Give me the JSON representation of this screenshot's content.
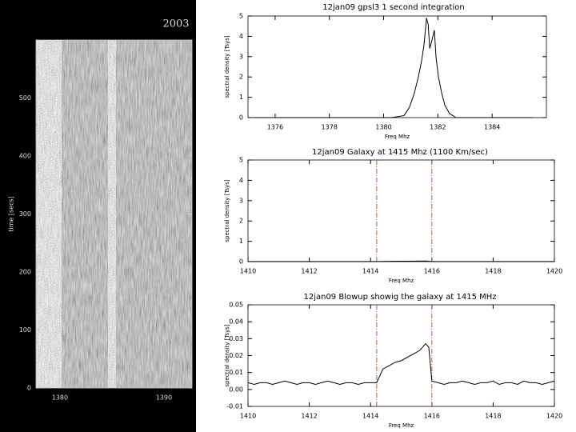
{
  "chart_data": [
    {
      "type": "image",
      "title": "2003",
      "ylabel": "time [secs]",
      "xlim": [
        1377.7,
        1392.7
      ],
      "xticks": [
        1380,
        1390
      ],
      "ylim": [
        0,
        600
      ],
      "yticks": [
        0,
        100,
        200,
        300,
        400,
        500
      ]
    },
    {
      "type": "line",
      "title": "12jan09 gpsl3 1 second integration",
      "xlabel": "Freq Mhz",
      "ylabel": "spectral density [Tsys]",
      "xlim": [
        1375,
        1386
      ],
      "xticks": [
        1376,
        1378,
        1380,
        1382,
        1384
      ],
      "ylim": [
        0,
        5
      ],
      "yticks": [
        0,
        1,
        2,
        3,
        4,
        5
      ],
      "color": "#000000",
      "x": [
        1375.2,
        1376.5,
        1378,
        1379.5,
        1380.3,
        1380.75,
        1380.95,
        1381.13,
        1381.28,
        1381.4,
        1381.49,
        1381.58,
        1381.64,
        1381.7,
        1381.78,
        1381.87,
        1381.93,
        1382.02,
        1382.14,
        1382.26,
        1382.43,
        1382.67,
        1385.5
      ],
      "values": [
        0,
        0,
        0,
        0,
        0,
        0.1,
        0.5,
        1.2,
        2,
        2.8,
        3.6,
        4.9,
        4.6,
        3.4,
        3.8,
        4.3,
        3.0,
        2.0,
        1.2,
        0.6,
        0.2,
        0,
        0
      ]
    },
    {
      "type": "line",
      "title": "12jan09 Galaxy at 1415 Mhz (1100 Km/sec)",
      "xlabel": "Freq Mhz",
      "ylabel": "spectral density [Tsys]",
      "xlim": [
        1410,
        1420
      ],
      "xticks": [
        1410,
        1412,
        1414,
        1416,
        1418,
        1420
      ],
      "ylim": [
        0,
        5
      ],
      "yticks": [
        0,
        1,
        2,
        3,
        4,
        5
      ],
      "color": "#000000",
      "vlines": [
        1414.2,
        1416.0
      ],
      "vline_color": "#b0603a",
      "x": [
        1410,
        1411,
        1412,
        1413,
        1414,
        1414.2,
        1414.4,
        1415,
        1415.8,
        1416,
        1417,
        1418,
        1419,
        1420
      ],
      "values": [
        0.004,
        0.004,
        0.004,
        0.004,
        0.004,
        0.004,
        0.012,
        0.018,
        0.027,
        0.005,
        0.004,
        0.004,
        0.004,
        0.004
      ]
    },
    {
      "type": "line",
      "title": "12jan09 Blowup showig the galaxy at 1415 MHz",
      "xlabel": "Freq Mhz",
      "ylabel": "spectral density [Tsys]",
      "xlim": [
        1410,
        1420
      ],
      "xticks": [
        1410,
        1412,
        1414,
        1416,
        1418,
        1420
      ],
      "ylim": [
        -0.01,
        0.05
      ],
      "yticks": [
        -0.01,
        {
          "value": 0,
          "label": "0.00"
        },
        0.01,
        0.02,
        0.03,
        0.04,
        0.05
      ],
      "color": "#000000",
      "vlines": [
        1414.2,
        1416.0
      ],
      "vline_color": "#b0603a",
      "x": [
        1410,
        1410.2,
        1410.4,
        1410.6,
        1410.8,
        1411,
        1411.2,
        1411.4,
        1411.6,
        1411.8,
        1412,
        1412.2,
        1412.4,
        1412.6,
        1412.8,
        1413,
        1413.2,
        1413.4,
        1413.6,
        1413.8,
        1414,
        1414.2,
        1414.3,
        1414.4,
        1414.6,
        1414.8,
        1415,
        1415.2,
        1415.4,
        1415.6,
        1415.8,
        1415.9,
        1416,
        1416.2,
        1416.4,
        1416.6,
        1416.8,
        1417,
        1417.2,
        1417.4,
        1417.6,
        1417.8,
        1418,
        1418.2,
        1418.4,
        1418.6,
        1418.8,
        1419,
        1419.2,
        1419.4,
        1419.6,
        1419.8,
        1420
      ],
      "values": [
        0.004,
        0.003,
        0.004,
        0.004,
        0.003,
        0.004,
        0.005,
        0.004,
        0.003,
        0.004,
        0.004,
        0.003,
        0.004,
        0.005,
        0.004,
        0.003,
        0.004,
        0.004,
        0.003,
        0.004,
        0.004,
        0.004,
        0.008,
        0.012,
        0.014,
        0.016,
        0.017,
        0.019,
        0.021,
        0.023,
        0.027,
        0.025,
        0.005,
        0.004,
        0.003,
        0.004,
        0.004,
        0.005,
        0.004,
        0.003,
        0.004,
        0.004,
        0.005,
        0.003,
        0.004,
        0.004,
        0.003,
        0.005,
        0.004,
        0.004,
        0.003,
        0.004,
        0.005
      ]
    }
  ]
}
